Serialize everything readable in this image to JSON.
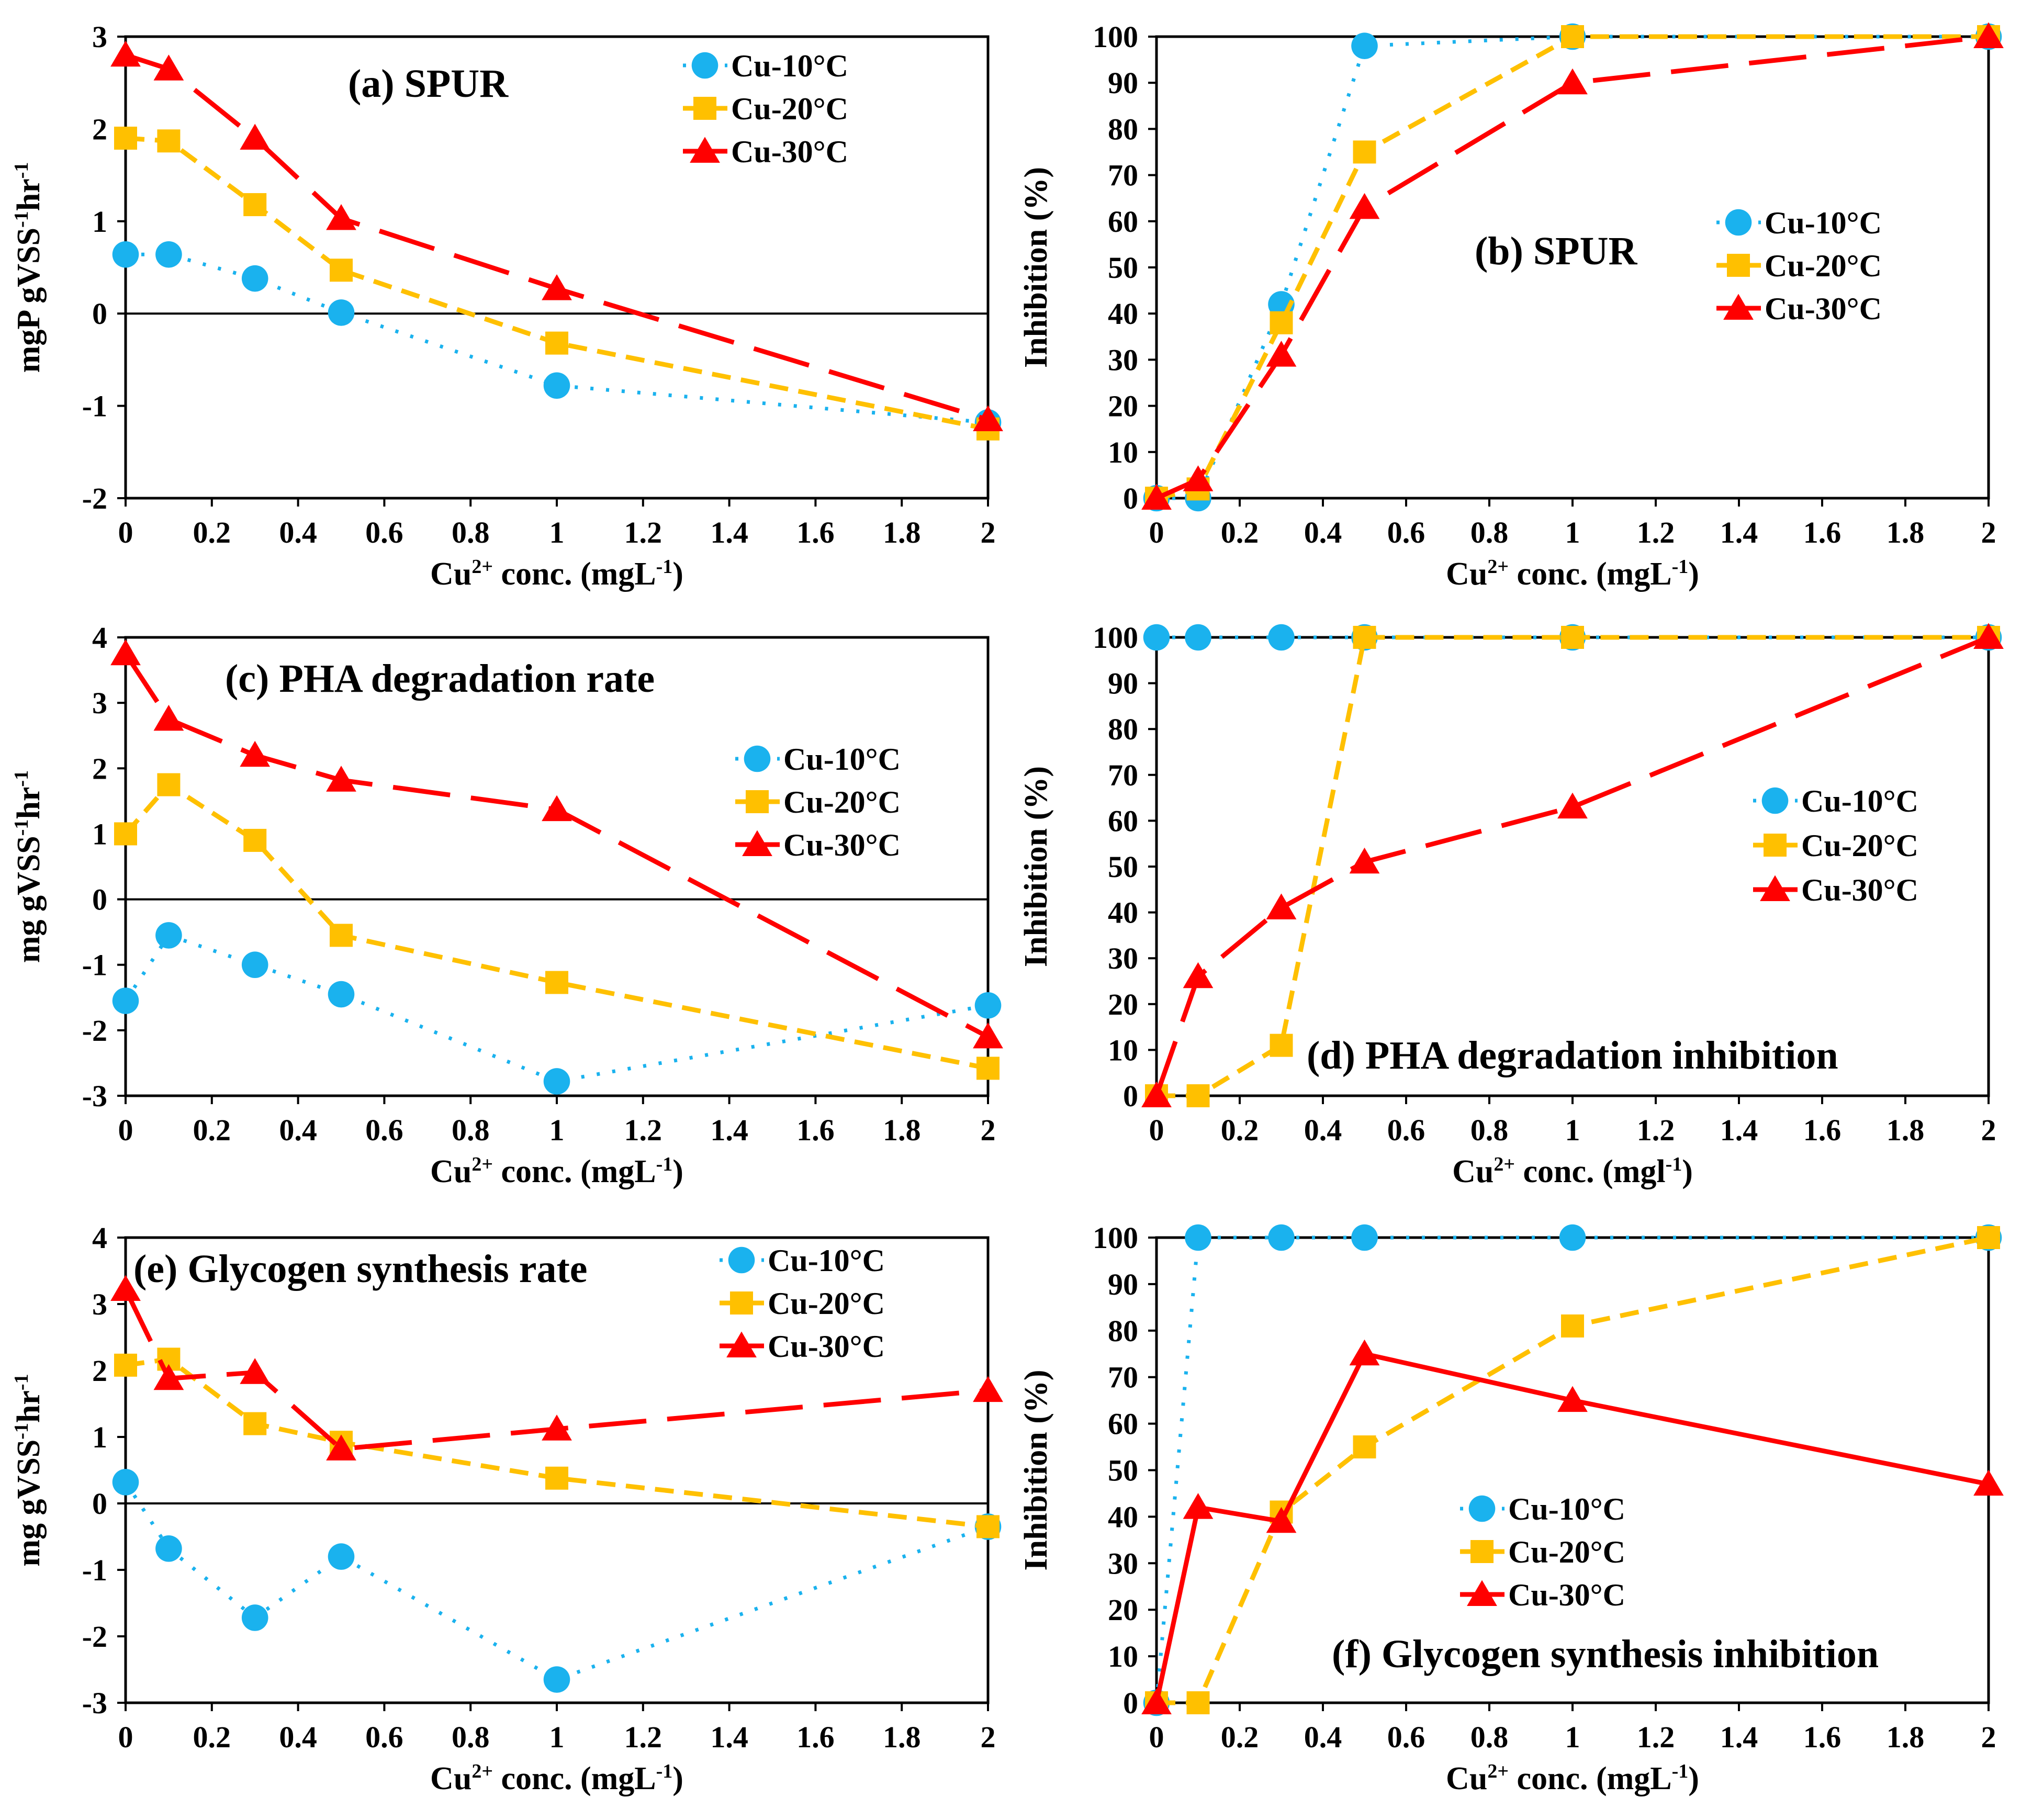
{
  "figure": {
    "xlabel_prefix": "Cu",
    "xlabel_sup": "2+",
    "colors": {
      "s10": "#1AB2EE",
      "s20": "#FFC000",
      "s30": "#FF0000"
    }
  },
  "chart_data": [
    {
      "id": "a",
      "type": "line",
      "title": "(a) SPUR",
      "ylabel": [
        "mgP gVSS",
        "-1",
        "hr",
        "-1"
      ],
      "xlabel": [
        "Cu",
        "2+",
        " conc. (mgL",
        "-1",
        ")"
      ],
      "xlim": [
        0,
        2
      ],
      "xstep": 0.2,
      "ylim": [
        -2,
        3
      ],
      "ystep": 1,
      "zero_line": true,
      "xticks": [
        "0",
        "0.2",
        "0.4",
        "0.6",
        "0.8",
        "1",
        "1.2",
        "1.4",
        "1.6",
        "1.8",
        "2"
      ],
      "yticks": [
        "-2",
        "-1",
        "0",
        "1",
        "2",
        "3"
      ],
      "legend": [
        "Cu-10°C",
        "Cu-20°C",
        "Cu-30°C"
      ],
      "series": [
        {
          "name": "Cu-10°C",
          "x": [
            0,
            0.1,
            0.3,
            0.5,
            1,
            2
          ],
          "y": [
            0.64,
            0.64,
            0.38,
            0.01,
            -0.78,
            -1.18
          ]
        },
        {
          "name": "Cu-20°C",
          "x": [
            0,
            0.1,
            0.3,
            0.5,
            1,
            2
          ],
          "y": [
            1.9,
            1.87,
            1.18,
            0.47,
            -0.32,
            -1.25
          ]
        },
        {
          "name": "Cu-30°C",
          "x": [
            0,
            0.1,
            0.3,
            0.5,
            1,
            2
          ],
          "y": [
            2.8,
            2.65,
            1.9,
            1.03,
            0.27,
            -1.15
          ]
        }
      ]
    },
    {
      "id": "b",
      "type": "line",
      "title": "(b) SPUR",
      "ylabel": [
        "Inhibition (%)"
      ],
      "xlabel": [
        "Cu",
        "2+",
        " conc. (mgL",
        "-1",
        ")"
      ],
      "xlim": [
        0,
        2
      ],
      "xstep": 0.2,
      "ylim": [
        0,
        100
      ],
      "ystep": 10,
      "zero_line": false,
      "xticks": [
        "0",
        "0.2",
        "0.4",
        "0.6",
        "0.8",
        "1",
        "1.2",
        "1.4",
        "1.6",
        "1.8",
        "2"
      ],
      "yticks": [
        "0",
        "10",
        "20",
        "30",
        "40",
        "50",
        "60",
        "70",
        "80",
        "90",
        "100"
      ],
      "legend": [
        "Cu-10°C",
        "Cu-20°C",
        "Cu-30°C"
      ],
      "series": [
        {
          "name": "Cu-10°C",
          "x": [
            0,
            0.1,
            0.3,
            0.5,
            1,
            2
          ],
          "y": [
            0,
            0,
            42,
            98,
            100,
            100
          ]
        },
        {
          "name": "Cu-20°C",
          "x": [
            0,
            0.1,
            0.3,
            0.5,
            1,
            2
          ],
          "y": [
            0,
            2,
            38,
            75,
            100,
            100
          ]
        },
        {
          "name": "Cu-30°C",
          "x": [
            0,
            0.1,
            0.3,
            0.5,
            1,
            2
          ],
          "y": [
            0,
            4,
            31,
            63,
            90,
            100
          ]
        }
      ]
    },
    {
      "id": "c",
      "type": "line",
      "title": "(c) PHA degradation rate",
      "ylabel": [
        "mg gVSS",
        "-1",
        "hr",
        "-1"
      ],
      "xlabel": [
        "Cu",
        "2+",
        " conc. (mgL",
        "-1",
        ")"
      ],
      "xlim": [
        0,
        2
      ],
      "xstep": 0.2,
      "ylim": [
        -3,
        4
      ],
      "ystep": 1,
      "zero_line": true,
      "xticks": [
        "0",
        "0.2",
        "0.4",
        "0.6",
        "0.8",
        "1",
        "1.2",
        "1.4",
        "1.6",
        "1.8",
        "2"
      ],
      "yticks": [
        "-3",
        "-2",
        "-1",
        "0",
        "1",
        "2",
        "3",
        "4"
      ],
      "legend": [
        "Cu-10°C",
        "Cu-20°C",
        "Cu-30°C"
      ],
      "series": [
        {
          "name": "Cu-10°C",
          "x": [
            0,
            0.1,
            0.3,
            0.5,
            1,
            2
          ],
          "y": [
            -1.55,
            -0.55,
            -1.0,
            -1.45,
            -2.78,
            -1.62
          ]
        },
        {
          "name": "Cu-20°C",
          "x": [
            0,
            0.1,
            0.3,
            0.5,
            1,
            2
          ],
          "y": [
            1.0,
            1.75,
            0.9,
            -0.55,
            -1.27,
            -2.58
          ]
        },
        {
          "name": "Cu-30°C",
          "x": [
            0,
            0.1,
            0.3,
            0.5,
            1,
            2
          ],
          "y": [
            3.75,
            2.75,
            2.2,
            1.82,
            1.37,
            -2.1
          ]
        }
      ]
    },
    {
      "id": "d",
      "type": "line",
      "title": "(d) PHA degradation inhibition",
      "ylabel": [
        "Inhibition (%)"
      ],
      "xlabel": [
        "Cu",
        "2+",
        " conc. (mgl",
        "-1",
        ")"
      ],
      "xlim": [
        0,
        2
      ],
      "xstep": 0.2,
      "ylim": [
        0,
        100
      ],
      "ystep": 10,
      "zero_line": false,
      "xticks": [
        "0",
        "0.2",
        "0.4",
        "0.6",
        "0.8",
        "1",
        "1.2",
        "1.4",
        "1.6",
        "1.8",
        "2"
      ],
      "yticks": [
        "0",
        "10",
        "20",
        "30",
        "40",
        "50",
        "60",
        "70",
        "80",
        "90",
        "100"
      ],
      "legend": [
        "Cu-10°C",
        "Cu-20°C",
        "Cu-30°C"
      ],
      "series": [
        {
          "name": "Cu-10°C",
          "x": [
            0,
            0.1,
            0.3,
            0.5,
            1,
            2
          ],
          "y": [
            100,
            100,
            100,
            100,
            100,
            100
          ]
        },
        {
          "name": "Cu-20°C",
          "x": [
            0,
            0.1,
            0.3,
            0.5,
            1,
            2
          ],
          "y": [
            0,
            0,
            11,
            100,
            100,
            100
          ]
        },
        {
          "name": "Cu-30°C",
          "x": [
            0,
            0.1,
            0.3,
            0.5,
            1,
            2
          ],
          "y": [
            0,
            26,
            41,
            51,
            63,
            100
          ]
        }
      ]
    },
    {
      "id": "e",
      "type": "line",
      "title": "(e) Glycogen synthesis rate",
      "ylabel": [
        "mg gVSS",
        "-1",
        "hr",
        "-1"
      ],
      "xlabel": [
        "Cu",
        "2+",
        " conc. (mgL",
        "-1",
        ")"
      ],
      "xlim": [
        0,
        2
      ],
      "xstep": 0.2,
      "ylim": [
        -3,
        4
      ],
      "ystep": 1,
      "zero_line": true,
      "xticks": [
        "0",
        "0.2",
        "0.4",
        "0.6",
        "0.8",
        "1",
        "1.2",
        "1.4",
        "1.6",
        "1.8",
        "2"
      ],
      "yticks": [
        "-3",
        "-2",
        "-1",
        "0",
        "1",
        "2",
        "3",
        "4"
      ],
      "legend": [
        "Cu-10°C",
        "Cu-20°C",
        "Cu-30°C"
      ],
      "series": [
        {
          "name": "Cu-10°C",
          "x": [
            0,
            0.1,
            0.3,
            0.5,
            1,
            2
          ],
          "y": [
            0.32,
            -0.68,
            -1.72,
            -0.8,
            -2.65,
            -0.35
          ]
        },
        {
          "name": "Cu-20°C",
          "x": [
            0,
            0.1,
            0.3,
            0.5,
            1,
            2
          ],
          "y": [
            2.08,
            2.17,
            1.2,
            0.92,
            0.38,
            -0.35
          ]
        },
        {
          "name": "Cu-30°C",
          "x": [
            0,
            0.1,
            0.3,
            0.5,
            1,
            2
          ],
          "y": [
            3.22,
            1.88,
            1.97,
            0.82,
            1.12,
            1.7
          ]
        }
      ]
    },
    {
      "id": "f",
      "type": "line",
      "title": "(f) Glycogen synthesis inhibition",
      "ylabel": [
        "Inhibition (%)"
      ],
      "xlabel": [
        "Cu",
        "2+",
        " conc. (mgL",
        "-1",
        ")"
      ],
      "xlim": [
        0,
        2
      ],
      "xstep": 0.2,
      "ylim": [
        0,
        100
      ],
      "ystep": 10,
      "zero_line": false,
      "xticks": [
        "0",
        "0.2",
        "0.4",
        "0.6",
        "0.8",
        "1",
        "1.2",
        "1.4",
        "1.6",
        "1.8",
        "2"
      ],
      "yticks": [
        "0",
        "10",
        "20",
        "30",
        "40",
        "50",
        "60",
        "70",
        "80",
        "90",
        "100"
      ],
      "legend": [
        "Cu-10°C",
        "Cu-20°C",
        "Cu-30°C"
      ],
      "series": [
        {
          "name": "Cu-10°C",
          "x": [
            0,
            0.1,
            0.3,
            0.5,
            1,
            2
          ],
          "y": [
            0,
            100,
            100,
            100,
            100,
            100
          ]
        },
        {
          "name": "Cu-20°C",
          "x": [
            0,
            0.1,
            0.3,
            0.5,
            1,
            2
          ],
          "y": [
            0,
            0,
            41,
            55,
            81,
            100
          ]
        },
        {
          "name": "Cu-30°C",
          "x": [
            0,
            0.1,
            0.3,
            0.5,
            1,
            2
          ],
          "y": [
            0,
            42,
            39,
            75,
            65,
            47
          ]
        }
      ]
    }
  ]
}
